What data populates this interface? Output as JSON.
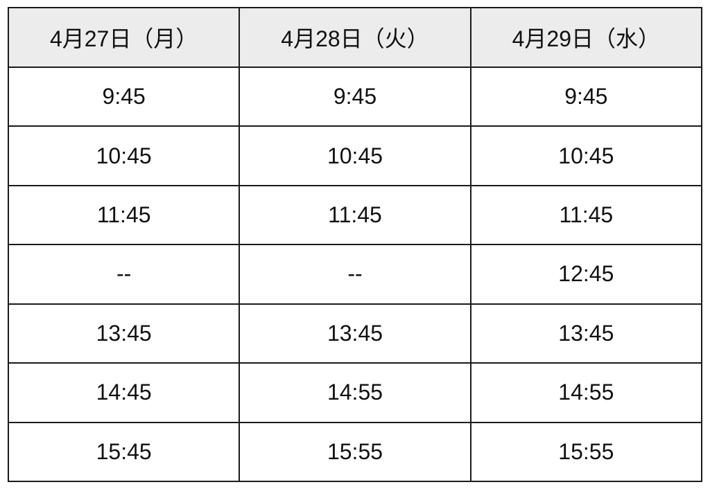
{
  "headers": [
    "4月27日（月）",
    "4月28日（火）",
    "4月29日（水）"
  ],
  "rows": [
    [
      "9:45",
      "9:45",
      "9:45"
    ],
    [
      "10:45",
      "10:45",
      "10:45"
    ],
    [
      "11:45",
      "11:45",
      "11:45"
    ],
    [
      "--",
      "--",
      "12:45"
    ],
    [
      "13:45",
      "13:45",
      "13:45"
    ],
    [
      "14:45",
      "14:55",
      "14:55"
    ],
    [
      "15:45",
      "15:55",
      "15:55"
    ]
  ],
  "colors": {
    "header_bg": "#ececec",
    "border": "#1a1a1a"
  }
}
